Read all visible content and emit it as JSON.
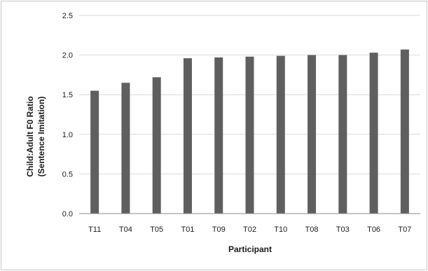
{
  "chart_data": {
    "type": "bar",
    "title": "",
    "xlabel": "Participant",
    "ylabel_lines": [
      "Child:Adult F0 Ratio",
      "(Sentence Imitation)"
    ],
    "categories": [
      "T11",
      "T04",
      "T05",
      "T01",
      "T09",
      "T02",
      "T10",
      "T08",
      "T03",
      "T06",
      "T07"
    ],
    "values": [
      1.55,
      1.65,
      1.72,
      1.96,
      1.97,
      1.98,
      1.99,
      2.0,
      2.0,
      2.03,
      2.07
    ],
    "ylim": [
      0,
      2.5
    ],
    "yticks": [
      "0.0",
      "0.5",
      "1.0",
      "1.5",
      "2.0",
      "2.5"
    ],
    "grid": true,
    "legend": "none",
    "colors": {
      "bar": "#5f5f5f",
      "grid": "#d9d9d9",
      "axis": "#8c8c8c"
    }
  }
}
